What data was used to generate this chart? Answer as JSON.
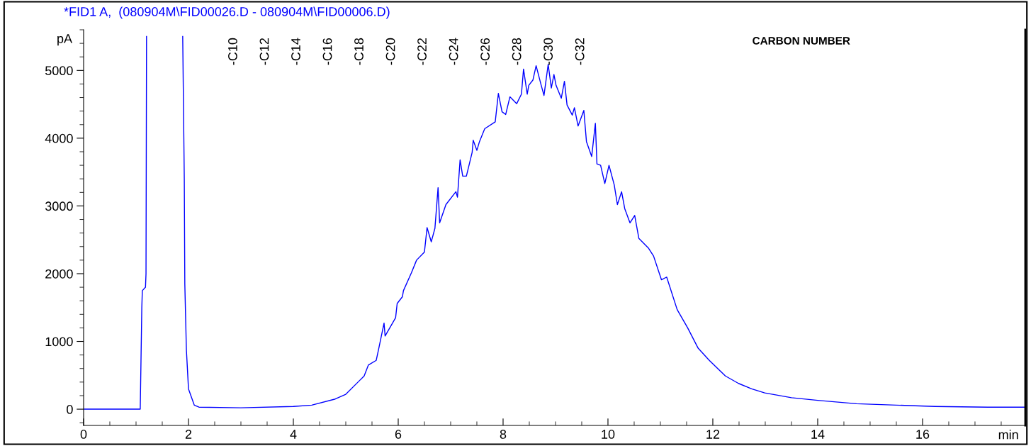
{
  "chart_data": {
    "type": "line",
    "title": "*FID1 A,  (080904M\\FID00026.D - 080904M\\FID00006.D)",
    "xlabel": "min",
    "ylabel": "pA",
    "xlim": [
      0,
      17.96
    ],
    "ylim": [
      -240,
      5600
    ],
    "xticks": [
      0,
      2,
      4,
      6,
      8,
      10,
      12,
      14,
      16
    ],
    "yticks": [
      0,
      1000,
      2000,
      3000,
      4000,
      5000
    ],
    "grid": false,
    "marker": "none",
    "line_style": "solid",
    "series": [
      {
        "color": "#0000ff",
        "x": [
          0,
          1.05,
          1.08,
          1.09,
          1.11,
          1.12,
          1.18,
          1.19,
          1.2,
          1.5,
          1.89,
          1.92,
          1.93,
          1.96,
          2.0,
          2.11,
          2.2,
          3.0,
          4.0,
          4.35,
          4.8,
          5.0,
          5.35,
          5.43,
          5.58,
          5.63,
          5.73,
          5.75,
          5.95,
          5.98,
          6.08,
          6.1,
          6.25,
          6.35,
          6.5,
          6.55,
          6.63,
          6.7,
          6.76,
          6.79,
          6.91,
          7.1,
          7.13,
          7.18,
          7.23,
          7.3,
          7.41,
          7.43,
          7.5,
          7.55,
          7.65,
          7.85,
          7.91,
          7.98,
          8.05,
          8.13,
          8.26,
          8.35,
          8.39,
          8.46,
          8.49,
          8.57,
          8.63,
          8.72,
          8.78,
          8.86,
          8.92,
          8.97,
          9.01,
          9.11,
          9.17,
          9.22,
          9.32,
          9.36,
          9.43,
          9.54,
          9.59,
          9.69,
          9.76,
          9.79,
          9.86,
          9.94,
          10.02,
          10.12,
          10.18,
          10.26,
          10.32,
          10.42,
          10.51,
          10.59,
          10.77,
          10.87,
          11.02,
          11.12,
          11.32,
          11.52,
          11.72,
          11.92,
          12.24,
          12.49,
          12.74,
          12.99,
          13.5,
          14.0,
          14.74,
          15.5,
          16.24,
          17.24,
          17.95
        ],
        "values": [
          0,
          0,
          0,
          500,
          1500,
          1750,
          1800,
          2000,
          5500,
          null,
          5500,
          3400,
          1850,
          880,
          300,
          60,
          30,
          20,
          40,
          60,
          150,
          220,
          490,
          650,
          720,
          900,
          1270,
          1080,
          1350,
          1560,
          1660,
          1750,
          2010,
          2200,
          2320,
          2680,
          2470,
          2670,
          3270,
          2750,
          3020,
          3210,
          3130,
          3680,
          3440,
          3440,
          3790,
          3970,
          3820,
          3950,
          4140,
          4240,
          4660,
          4390,
          4350,
          4610,
          4510,
          4650,
          5020,
          4650,
          4780,
          4860,
          5070,
          4800,
          4630,
          5090,
          4740,
          4940,
          4780,
          4590,
          4840,
          4490,
          4340,
          4450,
          4180,
          4410,
          3950,
          3730,
          4220,
          3620,
          3600,
          3330,
          3600,
          3310,
          3020,
          3210,
          2960,
          2750,
          2860,
          2520,
          2380,
          2260,
          1910,
          1950,
          1470,
          1200,
          900,
          730,
          490,
          380,
          300,
          240,
          170,
          130,
          80,
          60,
          40,
          30,
          30
        ]
      }
    ],
    "annotations": [
      "-C10",
      "-C12",
      "-C14",
      "-C16",
      "-C18",
      "-C20",
      "-C22",
      "-C24",
      "-C26",
      "-C28",
      "-C30",
      "-C32",
      "CARBON NUMBER"
    ]
  }
}
